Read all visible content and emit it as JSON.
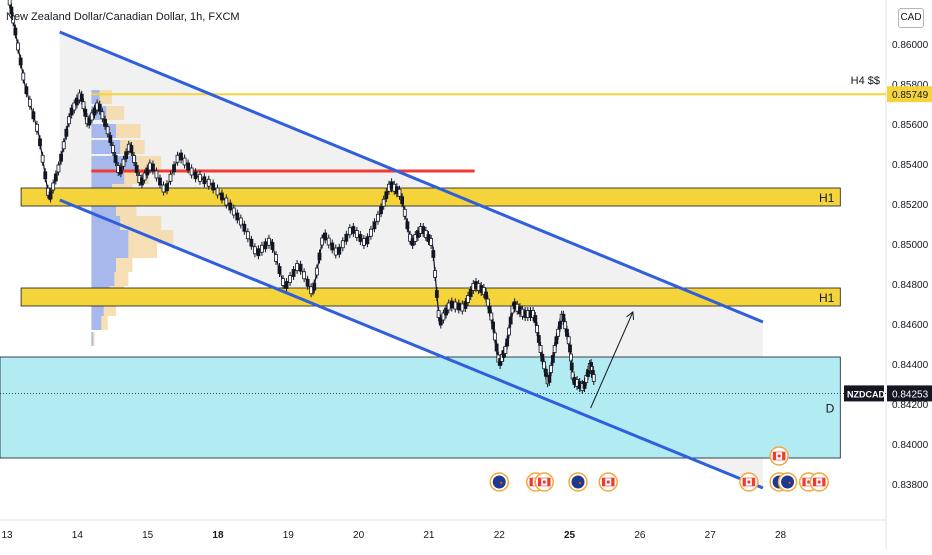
{
  "header": {
    "title": "New Zealand Dollar/Canadian Dollar, 1h, FXCM",
    "currency": "CAD"
  },
  "chart_data": {
    "type": "candlestick",
    "symbol": "NZDCAD",
    "timeframe": "1h",
    "x_axis": {
      "ticks": [
        {
          "label": "13",
          "day": 13
        },
        {
          "label": "14",
          "day": 14
        },
        {
          "label": "15",
          "day": 15
        },
        {
          "label": "18",
          "day": 16
        },
        {
          "label": "19",
          "day": 17
        },
        {
          "label": "20",
          "day": 18
        },
        {
          "label": "21",
          "day": 19
        },
        {
          "label": "22",
          "day": 20
        },
        {
          "label": "25",
          "day": 21
        },
        {
          "label": "26",
          "day": 22
        },
        {
          "label": "27",
          "day": 23
        },
        {
          "label": "28",
          "day": 24
        }
      ],
      "range": [
        12.9,
        25.5
      ]
    },
    "y_axis": {
      "ticks": [
        0.86,
        0.858,
        0.856,
        0.854,
        0.852,
        0.85,
        0.848,
        0.846,
        0.844,
        0.842,
        0.84,
        0.838
      ],
      "tick_labels": [
        "0.86000",
        "0.85800",
        "0.85600",
        "0.85400",
        "0.85200",
        "0.85000",
        "0.84800",
        "0.84600",
        "0.84400",
        "0.84200",
        "0.84000",
        "0.83800"
      ],
      "range": [
        0.8362,
        0.8622
      ]
    },
    "current_price": {
      "label": "NZDCAD",
      "value": 0.84253,
      "text": "0.84253"
    },
    "level_marker": {
      "label": "H4 $$",
      "value": 0.85749,
      "text": "0.85749"
    },
    "price_path": [
      [
        13.0,
        0.8628
      ],
      [
        13.1,
        0.861
      ],
      [
        13.25,
        0.858
      ],
      [
        13.45,
        0.8555
      ],
      [
        13.6,
        0.8522
      ],
      [
        13.75,
        0.854
      ],
      [
        13.9,
        0.8565
      ],
      [
        14.05,
        0.8575
      ],
      [
        14.15,
        0.856
      ],
      [
        14.3,
        0.857
      ],
      [
        14.45,
        0.8555
      ],
      [
        14.6,
        0.8535
      ],
      [
        14.75,
        0.855
      ],
      [
        14.9,
        0.853
      ],
      [
        15.05,
        0.854
      ],
      [
        15.25,
        0.8526
      ],
      [
        15.45,
        0.8545
      ],
      [
        15.65,
        0.8535
      ],
      [
        15.9,
        0.853
      ],
      [
        16.15,
        0.852
      ],
      [
        16.35,
        0.851
      ],
      [
        16.55,
        0.8495
      ],
      [
        16.75,
        0.8502
      ],
      [
        16.95,
        0.8478
      ],
      [
        17.15,
        0.849
      ],
      [
        17.35,
        0.8475
      ],
      [
        17.5,
        0.8505
      ],
      [
        17.7,
        0.8495
      ],
      [
        17.9,
        0.8508
      ],
      [
        18.1,
        0.85
      ],
      [
        18.3,
        0.8515
      ],
      [
        18.45,
        0.853
      ],
      [
        18.6,
        0.8525
      ],
      [
        18.75,
        0.85
      ],
      [
        18.9,
        0.8508
      ],
      [
        19.05,
        0.85
      ],
      [
        19.15,
        0.846
      ],
      [
        19.3,
        0.847
      ],
      [
        19.5,
        0.8468
      ],
      [
        19.65,
        0.848
      ],
      [
        19.8,
        0.8476
      ],
      [
        19.9,
        0.8462
      ],
      [
        20.0,
        0.844
      ],
      [
        20.1,
        0.8448
      ],
      [
        20.2,
        0.847
      ],
      [
        20.35,
        0.8465
      ],
      [
        20.5,
        0.8465
      ],
      [
        20.6,
        0.8445
      ],
      [
        20.7,
        0.843
      ],
      [
        20.8,
        0.845
      ],
      [
        20.9,
        0.8465
      ],
      [
        21.0,
        0.845
      ],
      [
        21.05,
        0.8432
      ],
      [
        21.2,
        0.8428
      ],
      [
        21.3,
        0.844
      ],
      [
        21.35,
        0.8432
      ]
    ],
    "horizontal_levels": [
      {
        "label": "H4 $$",
        "value": 0.85749,
        "x_start": 14.2,
        "x_end": 25.5,
        "color": "#f5d33a"
      },
      {
        "label": "",
        "value": 0.85365,
        "x_start": 14.2,
        "x_end": 19.65,
        "color": "#ef3b33"
      }
    ],
    "zones": [
      {
        "label": "H1",
        "low": 0.8519,
        "high": 0.8528,
        "x_start": 13.2,
        "x_end": 24.85,
        "color": "#f5d33a"
      },
      {
        "label": "H1",
        "low": 0.8469,
        "high": 0.8478,
        "x_start": 13.2,
        "x_end": 24.85,
        "color": "#f5d33a"
      },
      {
        "label": "D",
        "low": 0.8393,
        "high": 0.84435,
        "x_start": 12.9,
        "x_end": 24.85,
        "color": "#b3ebf2"
      }
    ],
    "channel": {
      "upper": [
        [
          13.75,
          0.8606
        ],
        [
          23.75,
          0.8461
        ]
      ],
      "lower": [
        [
          13.75,
          0.8522
        ],
        [
          23.75,
          0.8378
        ]
      ],
      "color": "#2f5fdc"
    },
    "projection_arrow": {
      "from": [
        21.3,
        0.8418
      ],
      "to": [
        21.9,
        0.8466
      ]
    },
    "volume_profile": {
      "x_start": 14.2,
      "rows": [
        [
          0.8573,
          0.1,
          0.25
        ],
        [
          0.8565,
          0.18,
          0.4
        ],
        [
          0.8556,
          0.3,
          0.6
        ],
        [
          0.8548,
          0.35,
          0.65
        ],
        [
          0.854,
          0.55,
          0.85
        ],
        [
          0.8533,
          0.4,
          0.7
        ],
        [
          0.8526,
          0.25,
          0.5
        ],
        [
          0.8517,
          0.3,
          0.55
        ],
        [
          0.851,
          0.35,
          0.85
        ],
        [
          0.8503,
          0.45,
          1.0
        ],
        [
          0.8496,
          0.45,
          0.8
        ],
        [
          0.8489,
          0.3,
          0.5
        ],
        [
          0.8482,
          0.28,
          0.45
        ],
        [
          0.8475,
          0.22,
          0.4
        ],
        [
          0.8467,
          0.15,
          0.3
        ],
        [
          0.846,
          0.12,
          0.2
        ],
        [
          0.8452,
          0.02,
          0.04
        ]
      ]
    },
    "calendar_events": [
      {
        "day": 20.0,
        "type": "nz"
      },
      {
        "day": 20.52,
        "type": "ca"
      },
      {
        "day": 20.64,
        "type": "ca"
      },
      {
        "day": 21.12,
        "type": "nz"
      },
      {
        "day": 21.55,
        "type": "ca"
      },
      {
        "day": 23.55,
        "type": "ca"
      },
      {
        "day": 23.98,
        "type": "ca",
        "row": 1
      },
      {
        "day": 23.98,
        "type": "nz"
      },
      {
        "day": 24.1,
        "type": "nz"
      },
      {
        "day": 24.4,
        "type": "ca"
      },
      {
        "day": 24.55,
        "type": "ca"
      }
    ]
  }
}
